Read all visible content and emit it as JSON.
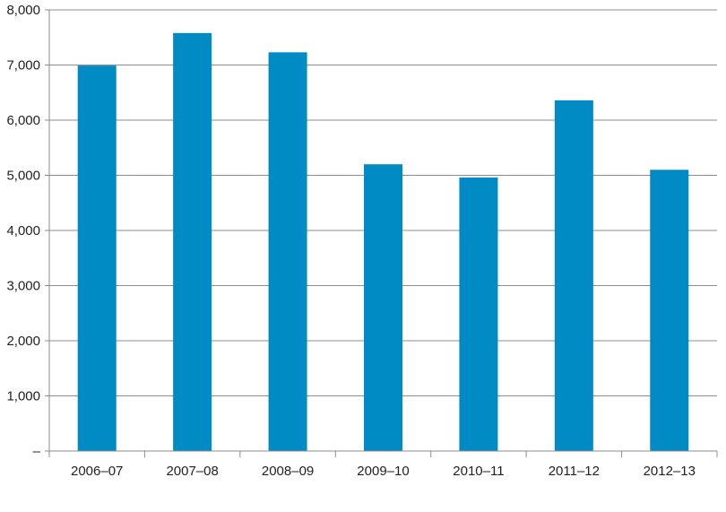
{
  "chart_data": {
    "type": "bar",
    "title": "",
    "xlabel": "",
    "ylabel": "",
    "categories": [
      "2006–07",
      "2007–08",
      "2008–09",
      "2009–10",
      "2010–11",
      "2011–12",
      "2012–13"
    ],
    "values": [
      6990,
      7580,
      7230,
      5200,
      4960,
      6360,
      5100
    ],
    "ylim": [
      0,
      8000
    ],
    "yticks": [
      0,
      1000,
      2000,
      3000,
      4000,
      5000,
      6000,
      7000,
      8000
    ],
    "ytick_labels": [
      "–",
      "1,000",
      "2,000",
      "3,000",
      "4,000",
      "5,000",
      "6,000",
      "7,000",
      "8,000"
    ],
    "grid": "horizontal",
    "legend": "none",
    "colors": {
      "bar": "#008bc4",
      "grid": "#8c8c8c",
      "axis": "#8c8c8c",
      "text": "#222222"
    }
  }
}
